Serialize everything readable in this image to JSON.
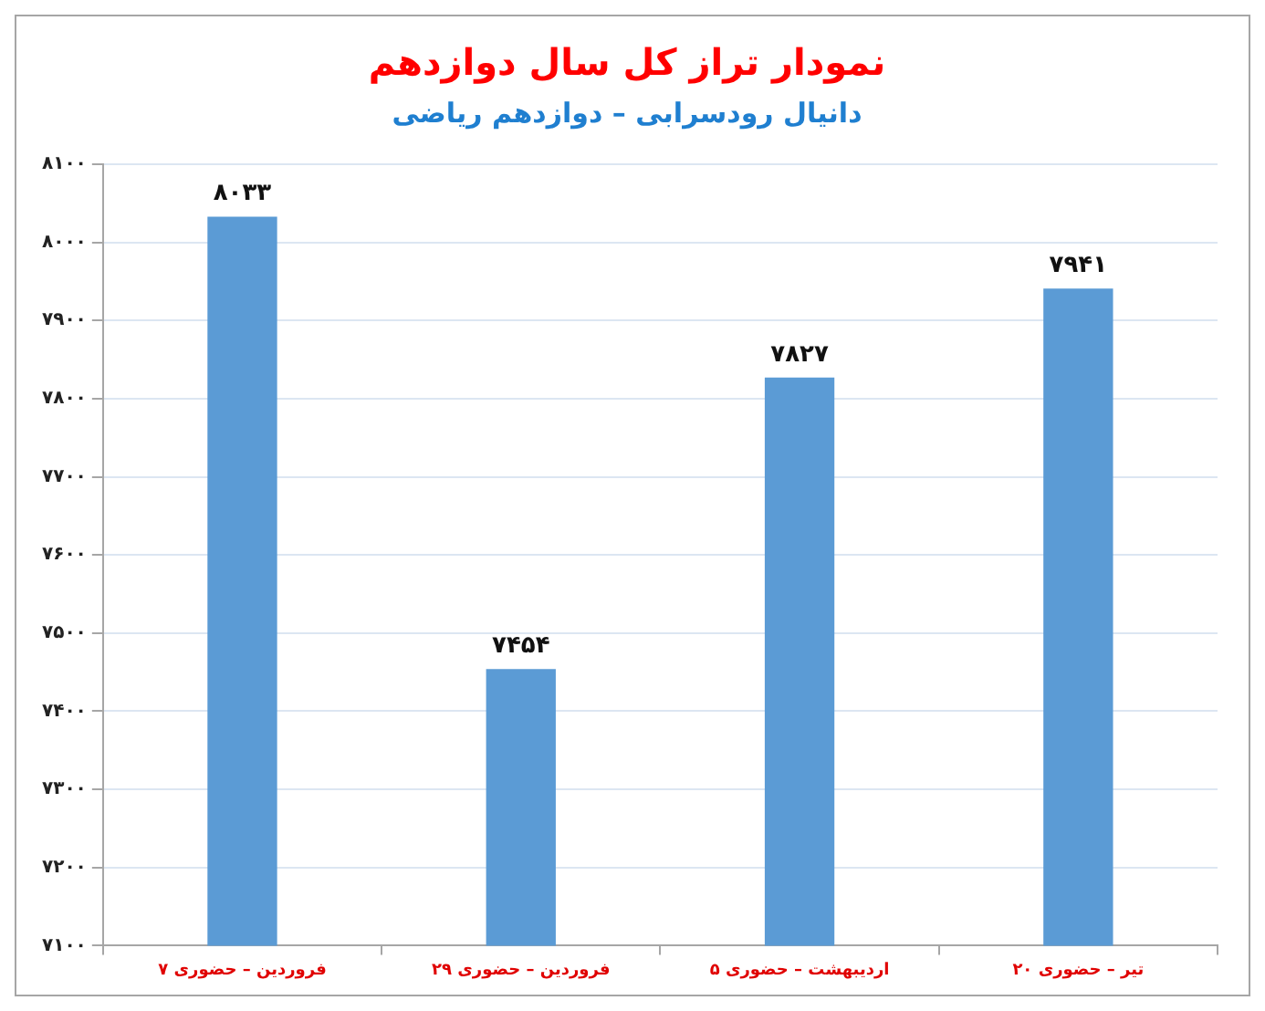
{
  "chart_data": {
    "type": "bar",
    "title": "نمودار تراز کل سال دوازدهم",
    "subtitle": "دانیال رودسرابی – دوازدهم ریاضی",
    "categories": [
      "۷ فروردین – حضوری",
      "۲۹ فروردین – حضوری",
      "۵ اردیبهشت – حضوری",
      "۲۰ تیر – حضوری"
    ],
    "values": [
      8033,
      7454,
      7827,
      7941
    ],
    "value_labels": [
      "۸۰۳۳",
      "۷۴۵۴",
      "۷۸۲۷",
      "۷۹۴۱"
    ],
    "color": "#5b9bd5",
    "ylim": [
      7100,
      8100
    ],
    "yticks": [
      {
        "value": 7100,
        "label": "۷۱۰۰"
      },
      {
        "value": 7200,
        "label": "۷۲۰۰"
      },
      {
        "value": 7300,
        "label": "۷۳۰۰"
      },
      {
        "value": 7400,
        "label": "۷۴۰۰"
      },
      {
        "value": 7500,
        "label": "۷۵۰۰"
      },
      {
        "value": 7600,
        "label": "۷۶۰۰"
      },
      {
        "value": 7700,
        "label": "۷۷۰۰"
      },
      {
        "value": 7800,
        "label": "۷۸۰۰"
      },
      {
        "value": 7900,
        "label": "۷۹۰۰"
      },
      {
        "value": 8000,
        "label": "۸۰۰۰"
      },
      {
        "value": 8100,
        "label": "۸۱۰۰"
      }
    ],
    "grid": "y",
    "legend": false
  }
}
